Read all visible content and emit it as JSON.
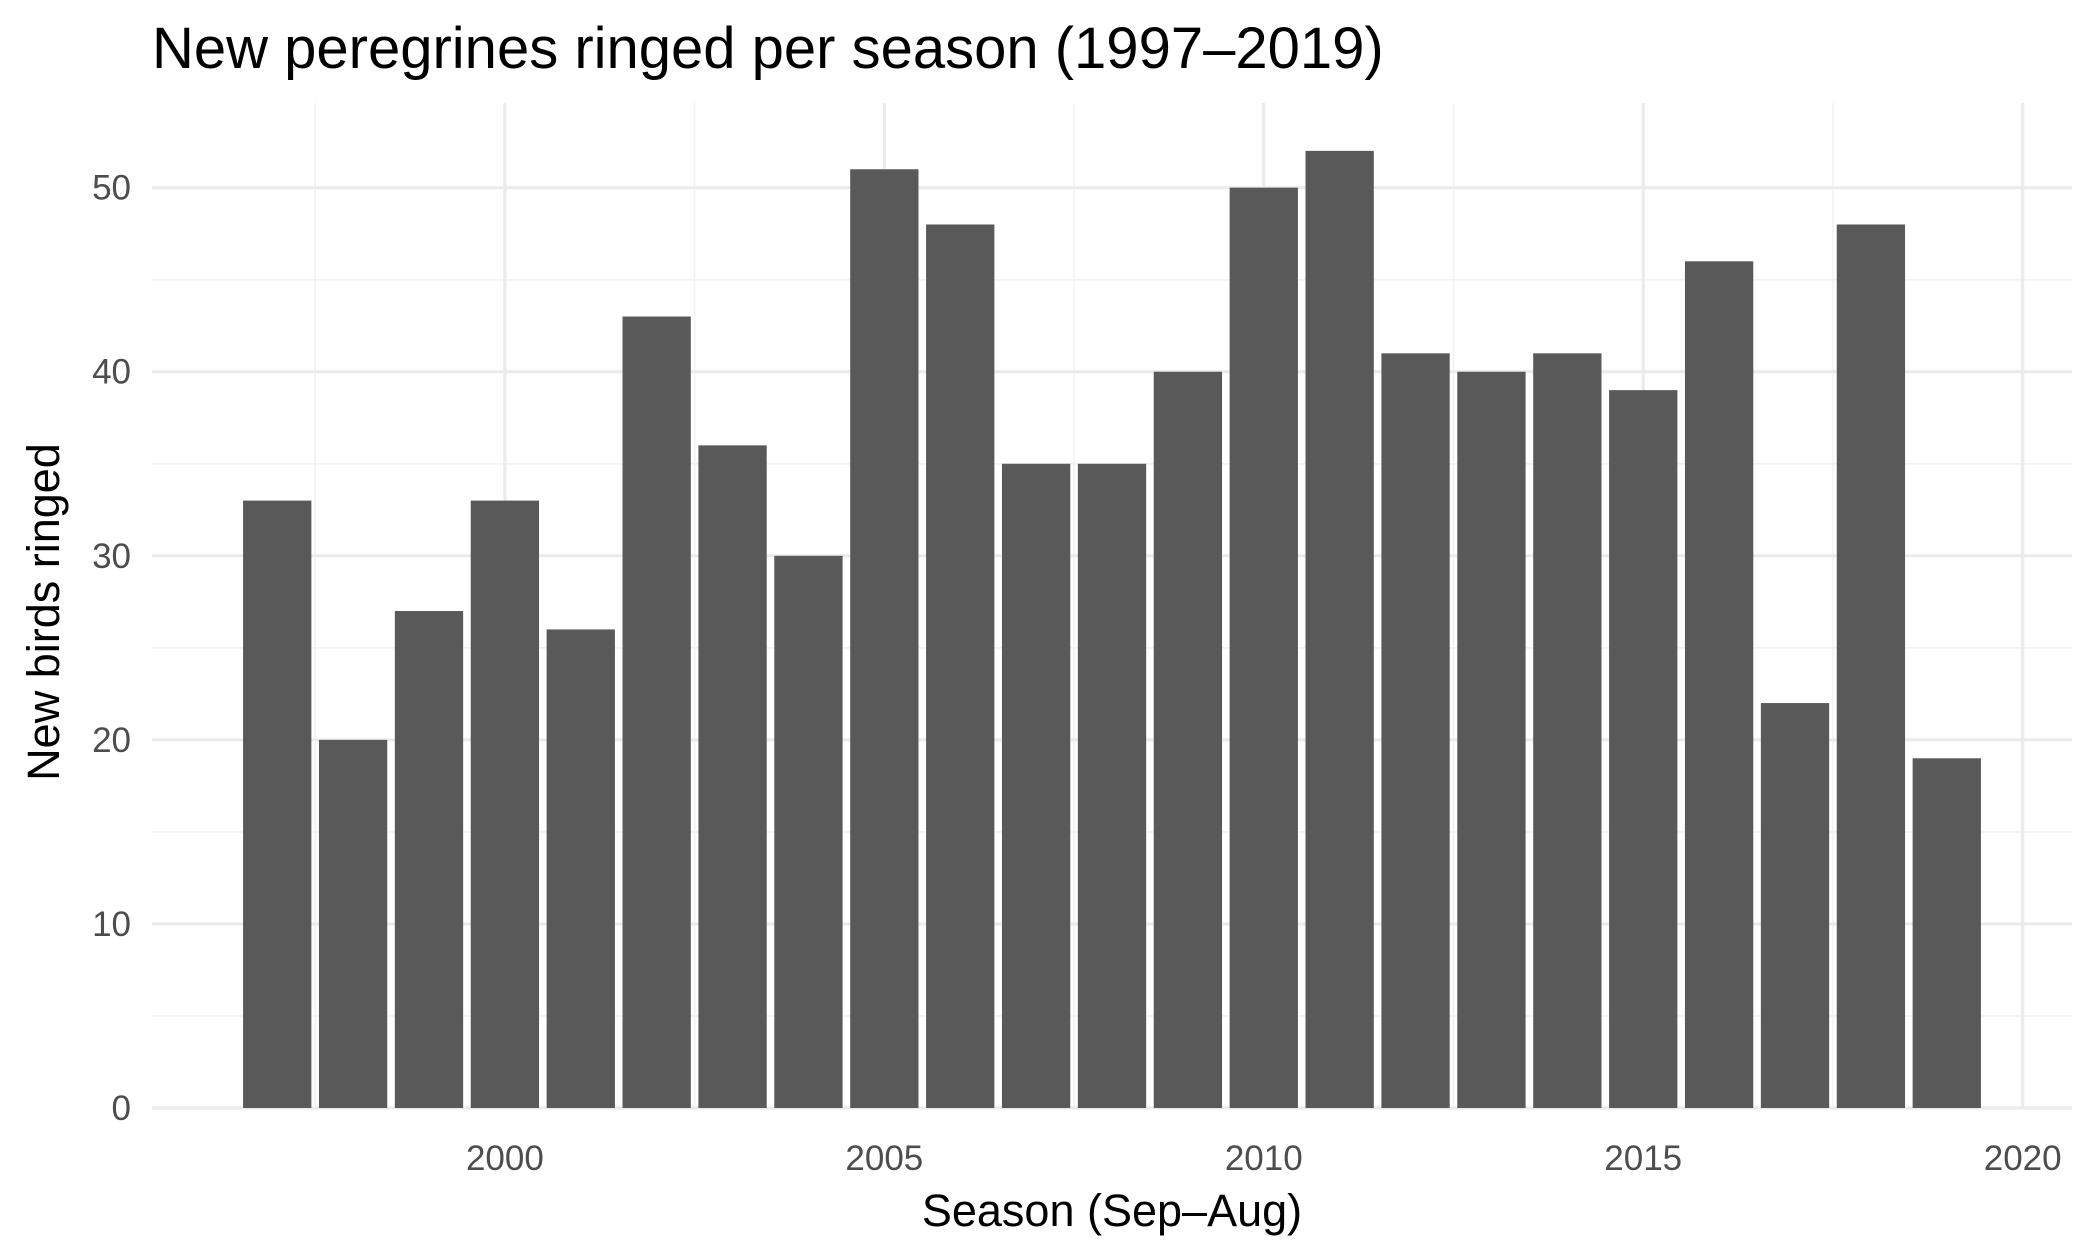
{
  "colors": {
    "background": "#ffffff",
    "bar": "#595959",
    "grid_major": "#ebebeb",
    "grid_minor": "#f2f2f2",
    "tick_text": "#4d4d4d",
    "title_text": "#000000"
  },
  "chart_data": {
    "type": "bar",
    "title": "New peregrines ringed per season (1997–2019)",
    "xlabel": "Season (Sep–Aug)",
    "ylabel": "New birds ringed",
    "x": [
      1997,
      1998,
      1999,
      2000,
      2001,
      2002,
      2003,
      2004,
      2005,
      2006,
      2007,
      2008,
      2009,
      2010,
      2011,
      2012,
      2013,
      2014,
      2015,
      2016,
      2017,
      2018,
      2019
    ],
    "values": [
      33,
      20,
      27,
      33,
      26,
      43,
      36,
      30,
      51,
      48,
      35,
      35,
      40,
      50,
      52,
      41,
      40,
      41,
      39,
      46,
      22,
      48,
      19
    ],
    "xlim": [
      1995.35,
      2020.65
    ],
    "ylim": [
      0,
      54.6
    ],
    "x_ticks": [
      "2000",
      "2005",
      "2010",
      "2015",
      "2020"
    ],
    "y_ticks": [
      "0",
      "10",
      "20",
      "30",
      "40",
      "50"
    ],
    "grid": true,
    "legend": "none"
  }
}
